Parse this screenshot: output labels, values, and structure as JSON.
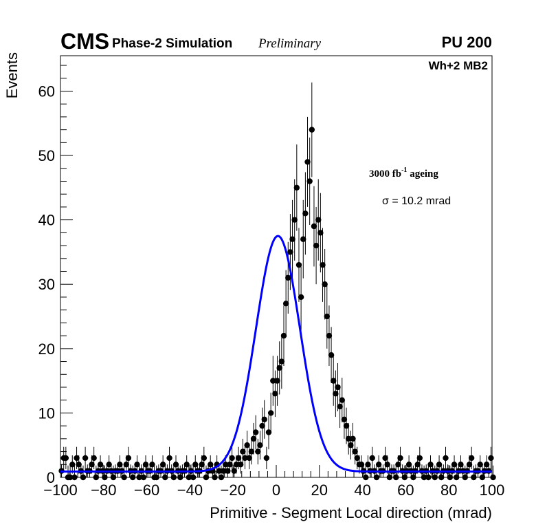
{
  "chart_data": {
    "type": "scatter",
    "title": "",
    "xlabel": "Primitive - Segment Local direction (mrad)",
    "ylabel": "Events",
    "xlim": [
      -100,
      100
    ],
    "ylim": [
      0,
      65.5
    ],
    "x_ticks": [
      -100,
      -80,
      -60,
      -40,
      -20,
      0,
      20,
      40,
      60,
      80,
      100
    ],
    "x_tick_labels": [
      "−100",
      "−80",
      "−60",
      "−40",
      "−20",
      "0",
      "20",
      "40",
      "60",
      "80",
      "100"
    ],
    "y_ticks": [
      0,
      10,
      20,
      30,
      40,
      50,
      60
    ],
    "y_tick_labels": [
      "0",
      "10",
      "20",
      "30",
      "40",
      "50",
      "60"
    ],
    "bin_width": 1,
    "series": [
      {
        "name": "Data (Primitive - Segment)",
        "style": "points-with-poisson-errors",
        "color": "#000000",
        "x_start": -99.5,
        "values": [
          1,
          3,
          3,
          0,
          0,
          2,
          0,
          3,
          2,
          1,
          0,
          3,
          1,
          1,
          2,
          3,
          0,
          1,
          2,
          1,
          0,
          1,
          2,
          1,
          0,
          1,
          1,
          2,
          1,
          0,
          2,
          3,
          1,
          0,
          1,
          2,
          0,
          1,
          0,
          2,
          1,
          1,
          2,
          0,
          0,
          1,
          1,
          2,
          0,
          1,
          3,
          1,
          0,
          2,
          1,
          0,
          1,
          1,
          2,
          0,
          1,
          0,
          2,
          1,
          1,
          2,
          3,
          0,
          1,
          2,
          1,
          0,
          2,
          1,
          0,
          1,
          2,
          1,
          2,
          3,
          1,
          2,
          3,
          2,
          4,
          3,
          5,
          3,
          4,
          6,
          7,
          4,
          5,
          8,
          9,
          3,
          7,
          10,
          15,
          13,
          15,
          17,
          18,
          22,
          27,
          31,
          35,
          37,
          40,
          45,
          33,
          28,
          37,
          41,
          49,
          46,
          54,
          39,
          36,
          40,
          38,
          33,
          30,
          25,
          22,
          19,
          15,
          13,
          14,
          11,
          12,
          9,
          8,
          6,
          5,
          6,
          4,
          3,
          2,
          2,
          1,
          0,
          2,
          1,
          3,
          1,
          0,
          2,
          1,
          1,
          3,
          2,
          0,
          1,
          1,
          0,
          2,
          3,
          1,
          0,
          1,
          2,
          1,
          0,
          1,
          2,
          3,
          1,
          0,
          1,
          0,
          2,
          1,
          0,
          1,
          2,
          0,
          1,
          3,
          1,
          0,
          1,
          2,
          0,
          1,
          2,
          1,
          0,
          1,
          2,
          3,
          0,
          1,
          1,
          2,
          0,
          1,
          2,
          1,
          3,
          0
        ]
      },
      {
        "name": "Gaussian fit",
        "style": "line",
        "color": "#0000ff",
        "amplitude": 36.6,
        "mean": 0.8,
        "sigma": 10.2,
        "baseline": 0.9
      }
    ],
    "annotations": [
      {
        "text": "3000 fb",
        "superscript": "-1",
        "suffix": " ageing"
      },
      {
        "text": "σ = 10.2 mrad"
      }
    ]
  },
  "labels": {
    "cms": "CMS",
    "phase2": "Phase-2 Simulation",
    "preliminary": "Preliminary",
    "pileup": "PU 200",
    "chamber": "Wh+2 MB2",
    "ageing_main": "3000 fb",
    "ageing_sup": "-1",
    "ageing_suffix": " ageing",
    "sigma_text": "σ = 10.2 mrad"
  },
  "colors": {
    "data": "#000000",
    "fit": "#0000ff",
    "frame": "#000000",
    "background": "#ffffff"
  }
}
